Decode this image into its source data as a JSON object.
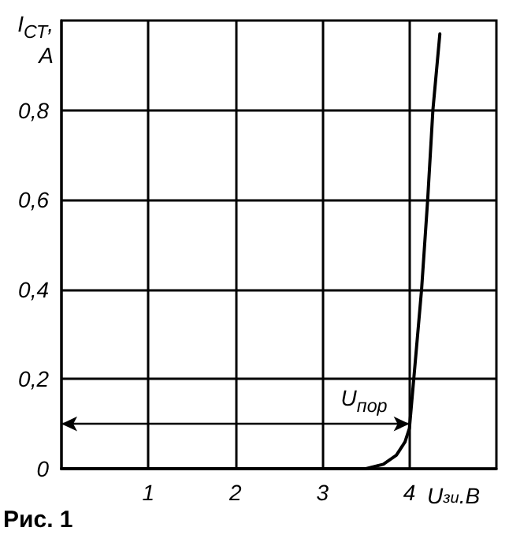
{
  "chart_data": {
    "type": "line",
    "xlabel": "U$_{зи}$.В",
    "ylabel": "I$_{СТ}$,\nА",
    "x": [
      0,
      1,
      2,
      3,
      3.5,
      3.7,
      3.85,
      3.95,
      4.0,
      4.05,
      4.14,
      4.21,
      4.27,
      4.35
    ],
    "series": [
      {
        "color": "#000000",
        "values": [
          0,
          0,
          0,
          0,
          0,
          0.01,
          0.03,
          0.06,
          0.09,
          0.2,
          0.4,
          0.6,
          0.8,
          0.97
        ]
      }
    ],
    "xlim": [
      0,
      5
    ],
    "ylim": [
      0,
      1
    ],
    "xticks": [
      1,
      2,
      3,
      4
    ],
    "yticks": [
      0,
      {
        "value": 0.2,
        "label": "0,2"
      },
      {
        "value": 0.4,
        "label": "0,4"
      },
      {
        "value": 0.6,
        "label": "0,6"
      },
      {
        "value": 0.8,
        "label": "0,8"
      }
    ],
    "grid": true,
    "marker": "none",
    "line_style": "solid",
    "annotations": [
      {
        "text": "U$_{пор}$",
        "x": 4,
        "y": 0.1
      },
      "Рис. 1"
    ]
  }
}
